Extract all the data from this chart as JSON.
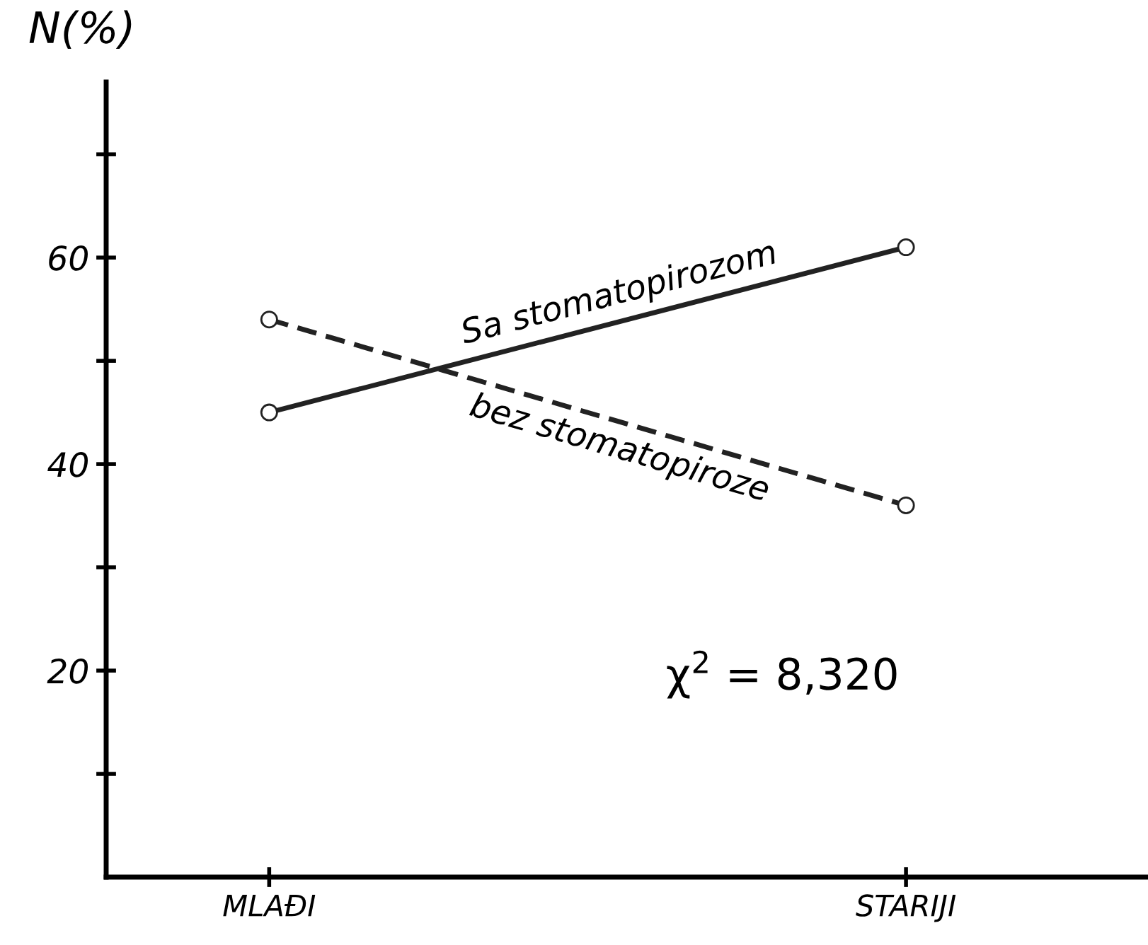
{
  "chart_data": {
    "type": "line",
    "ylabel": "N(%)",
    "categories": [
      "MLAĐI",
      "STARIJI"
    ],
    "series": [
      {
        "name": "Sa stomatopirozom",
        "color": "#222222",
        "values": [
          45,
          61
        ],
        "line_style": "solid"
      },
      {
        "name": "bez stomatopiroze",
        "color": "#222222",
        "values": [
          54,
          36
        ],
        "line_style": "dashed"
      }
    ],
    "ylim": [
      0,
      77
    ],
    "yticks": [
      {
        "value": 10,
        "label": null
      },
      20,
      {
        "value": 30,
        "label": null
      },
      40,
      {
        "value": 50,
        "label": null
      },
      60,
      {
        "value": 70,
        "label": null
      }
    ],
    "marker": "circle",
    "grid": false,
    "legend": false,
    "annotations": [
      "χ$^{2}$ = 8,320"
    ]
  }
}
